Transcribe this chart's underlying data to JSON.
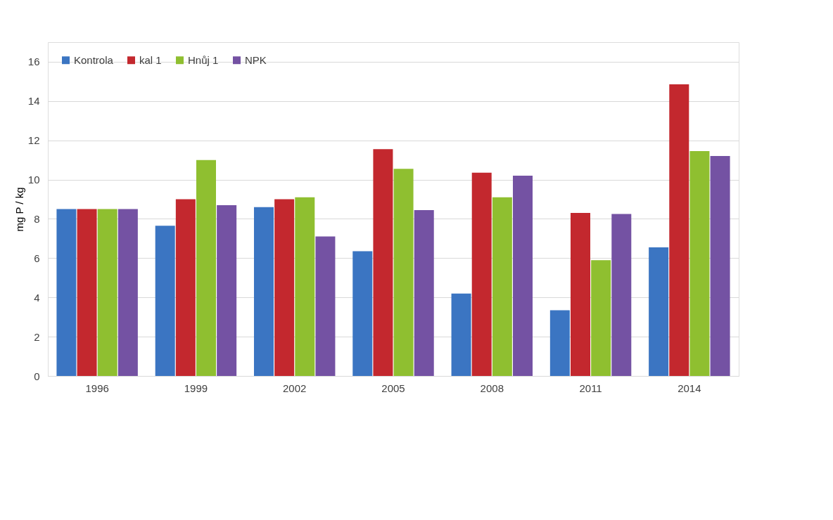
{
  "chart_data": {
    "type": "bar",
    "ylabel": "mg P / kg",
    "categories": [
      "1996",
      "1999",
      "2002",
      "2005",
      "2008",
      "2011",
      "2014"
    ],
    "series": [
      {
        "name": "Kontrola",
        "color": "#3b75c2",
        "values": [
          8.5,
          7.65,
          8.6,
          6.35,
          4.2,
          3.35,
          6.55
        ]
      },
      {
        "name": "kal 1",
        "color": "#c3282e",
        "values": [
          8.5,
          9.0,
          9.0,
          11.55,
          10.35,
          8.3,
          14.85
        ]
      },
      {
        "name": "Hnůj 1",
        "color": "#8fbf30",
        "values": [
          8.5,
          11.0,
          9.1,
          10.55,
          9.1,
          5.9,
          11.45
        ]
      },
      {
        "name": "NPK",
        "color": "#7452a3",
        "values": [
          8.5,
          8.7,
          7.1,
          8.45,
          10.2,
          8.25,
          11.2
        ]
      }
    ],
    "ylim": [
      0,
      17
    ],
    "yticks": [
      0,
      2,
      4,
      6,
      8,
      10,
      12,
      14,
      16
    ],
    "grid": "y",
    "legend": "top left"
  }
}
